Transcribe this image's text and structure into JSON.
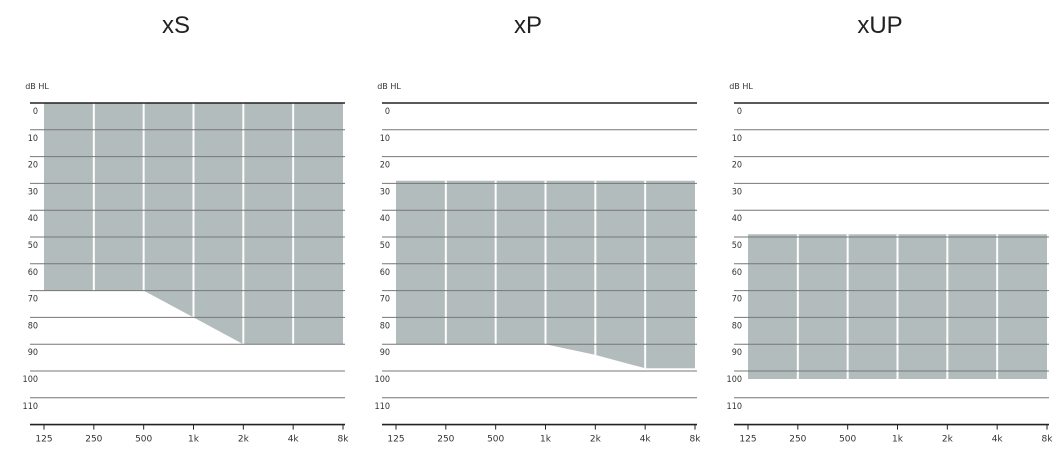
{
  "chart_data": [
    {
      "type": "area",
      "title": "xS",
      "ylabel": "dB  HL",
      "y_axis_inverted": true,
      "ylim": [
        0,
        115
      ],
      "y_ticks": [
        "0",
        "10",
        "20",
        "30",
        "40",
        "50",
        "60",
        "70",
        "80",
        "90",
        "100",
        "110"
      ],
      "x_ticks": [
        "125",
        "250",
        "500",
        "1k",
        "2k",
        "4k",
        "8k"
      ],
      "fill_color": "#b2bcbc",
      "band": {
        "x": [
          "125",
          "250",
          "500",
          "1k",
          "2k",
          "4k",
          "8k"
        ],
        "upper_db": [
          0,
          0,
          0,
          0,
          0,
          0,
          0
        ],
        "lower_db": [
          70,
          70,
          70,
          80,
          90,
          90,
          90
        ]
      }
    },
    {
      "type": "area",
      "title": "xP",
      "ylabel": "dB  HL",
      "y_axis_inverted": true,
      "ylim": [
        0,
        115
      ],
      "y_ticks": [
        "0",
        "10",
        "20",
        "30",
        "40",
        "50",
        "60",
        "70",
        "80",
        "90",
        "100",
        "110"
      ],
      "x_ticks": [
        "125",
        "250",
        "500",
        "1k",
        "2k",
        "4k",
        "8k"
      ],
      "fill_color": "#b2bcbc",
      "band": {
        "x": [
          "125",
          "250",
          "500",
          "1k",
          "2k",
          "4k",
          "8k"
        ],
        "upper_db": [
          29,
          29,
          29,
          29,
          29,
          29,
          29
        ],
        "lower_db": [
          90,
          90,
          90,
          90,
          94,
          99,
          99
        ]
      }
    },
    {
      "type": "area",
      "title": "xUP",
      "ylabel": "dB  HL",
      "y_axis_inverted": true,
      "ylim": [
        0,
        115
      ],
      "y_ticks": [
        "0",
        "10",
        "20",
        "30",
        "40",
        "50",
        "60",
        "70",
        "80",
        "90",
        "100",
        "110"
      ],
      "x_ticks": [
        "125",
        "250",
        "500",
        "1k",
        "2k",
        "4k",
        "8k"
      ],
      "fill_color": "#b2bcbc",
      "band": {
        "x": [
          "125",
          "250",
          "500",
          "1k",
          "2k",
          "4k",
          "8k"
        ],
        "upper_db": [
          49,
          49,
          49,
          49,
          49,
          49,
          49
        ],
        "lower_db": [
          103,
          103,
          103,
          103,
          103,
          103,
          103
        ]
      }
    }
  ]
}
